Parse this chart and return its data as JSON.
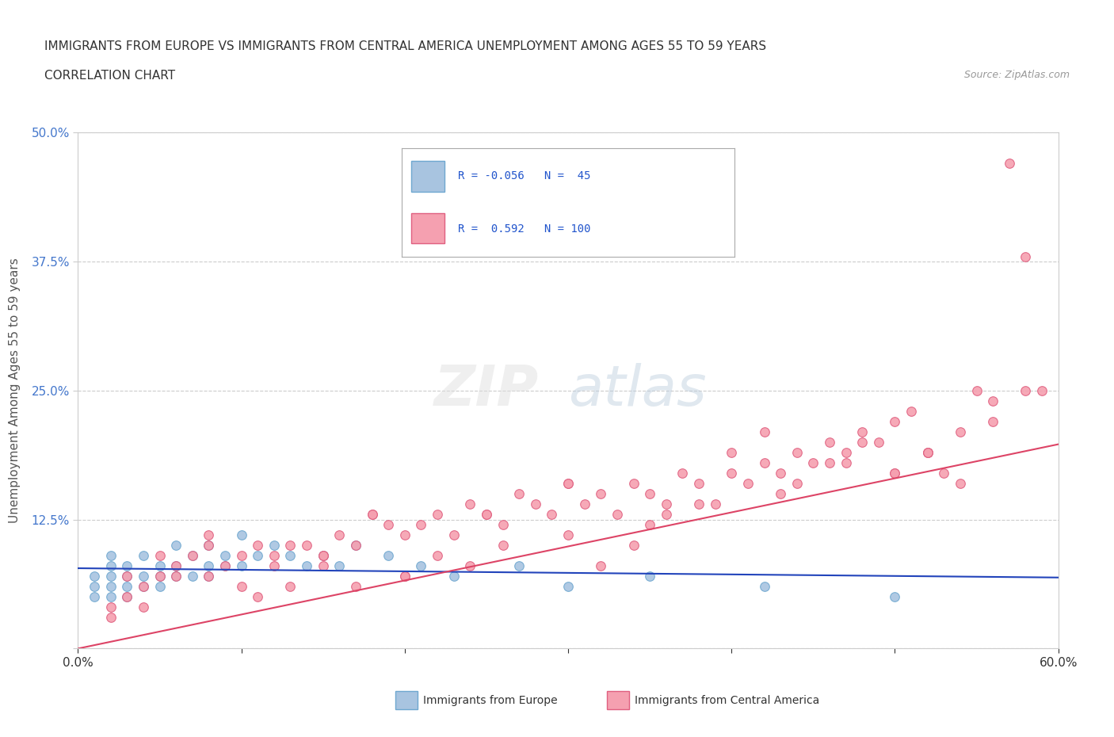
{
  "title_line1": "IMMIGRANTS FROM EUROPE VS IMMIGRANTS FROM CENTRAL AMERICA UNEMPLOYMENT AMONG AGES 55 TO 59 YEARS",
  "title_line2": "CORRELATION CHART",
  "source_text": "Source: ZipAtlas.com",
  "ylabel": "Unemployment Among Ages 55 to 59 years",
  "xlim": [
    0.0,
    0.6
  ],
  "ylim": [
    0.0,
    0.5
  ],
  "grid_color": "#cccccc",
  "background_color": "#ffffff",
  "europe_color": "#a8c4e0",
  "europe_edge_color": "#6fa8d0",
  "central_america_color": "#f5a0b0",
  "central_america_edge_color": "#e06080",
  "europe_line_color": "#2244bb",
  "central_america_line_color": "#dd4466",
  "R_europe": -0.056,
  "N_europe": 45,
  "R_central": 0.592,
  "N_central": 100,
  "legend_label_europe": "Immigrants from Europe",
  "legend_label_central": "Immigrants from Central America",
  "watermark_zip": "ZIP",
  "watermark_atlas": "atlas",
  "europe_x": [
    0.01,
    0.01,
    0.01,
    0.02,
    0.02,
    0.02,
    0.02,
    0.02,
    0.03,
    0.03,
    0.03,
    0.03,
    0.04,
    0.04,
    0.04,
    0.05,
    0.05,
    0.05,
    0.06,
    0.06,
    0.06,
    0.07,
    0.07,
    0.08,
    0.08,
    0.08,
    0.09,
    0.09,
    0.1,
    0.1,
    0.11,
    0.12,
    0.13,
    0.14,
    0.15,
    0.16,
    0.17,
    0.19,
    0.21,
    0.23,
    0.27,
    0.3,
    0.35,
    0.42,
    0.5
  ],
  "europe_y": [
    0.05,
    0.06,
    0.07,
    0.05,
    0.06,
    0.07,
    0.08,
    0.09,
    0.05,
    0.06,
    0.07,
    0.08,
    0.06,
    0.07,
    0.09,
    0.06,
    0.07,
    0.08,
    0.07,
    0.08,
    0.1,
    0.07,
    0.09,
    0.07,
    0.08,
    0.1,
    0.08,
    0.09,
    0.08,
    0.11,
    0.09,
    0.1,
    0.09,
    0.08,
    0.09,
    0.08,
    0.1,
    0.09,
    0.08,
    0.07,
    0.08,
    0.06,
    0.07,
    0.06,
    0.05
  ],
  "central_x": [
    0.02,
    0.03,
    0.03,
    0.04,
    0.05,
    0.05,
    0.06,
    0.07,
    0.08,
    0.08,
    0.09,
    0.1,
    0.11,
    0.12,
    0.13,
    0.14,
    0.15,
    0.16,
    0.17,
    0.18,
    0.19,
    0.2,
    0.21,
    0.22,
    0.23,
    0.24,
    0.25,
    0.26,
    0.27,
    0.28,
    0.29,
    0.3,
    0.31,
    0.32,
    0.33,
    0.34,
    0.35,
    0.36,
    0.37,
    0.38,
    0.39,
    0.4,
    0.41,
    0.42,
    0.43,
    0.44,
    0.45,
    0.46,
    0.47,
    0.48,
    0.49,
    0.5,
    0.51,
    0.52,
    0.53,
    0.54,
    0.55,
    0.56,
    0.57,
    0.58,
    0.4,
    0.42,
    0.44,
    0.46,
    0.48,
    0.5,
    0.52,
    0.3,
    0.32,
    0.34,
    0.36,
    0.2,
    0.22,
    0.24,
    0.26,
    0.15,
    0.17,
    0.13,
    0.11,
    0.58,
    0.56,
    0.54,
    0.52,
    0.5,
    0.47,
    0.43,
    0.38,
    0.35,
    0.3,
    0.25,
    0.2,
    0.18,
    0.15,
    0.12,
    0.1,
    0.08,
    0.06,
    0.04,
    0.59,
    0.02
  ],
  "central_y": [
    0.04,
    0.05,
    0.07,
    0.06,
    0.07,
    0.09,
    0.08,
    0.09,
    0.07,
    0.11,
    0.08,
    0.09,
    0.1,
    0.09,
    0.1,
    0.1,
    0.09,
    0.11,
    0.1,
    0.13,
    0.12,
    0.11,
    0.12,
    0.13,
    0.11,
    0.14,
    0.13,
    0.12,
    0.15,
    0.14,
    0.13,
    0.16,
    0.14,
    0.15,
    0.13,
    0.16,
    0.15,
    0.14,
    0.17,
    0.16,
    0.14,
    0.17,
    0.16,
    0.18,
    0.17,
    0.19,
    0.18,
    0.2,
    0.19,
    0.21,
    0.2,
    0.22,
    0.23,
    0.19,
    0.17,
    0.21,
    0.25,
    0.22,
    0.47,
    0.38,
    0.19,
    0.21,
    0.16,
    0.18,
    0.2,
    0.17,
    0.19,
    0.11,
    0.08,
    0.1,
    0.13,
    0.07,
    0.09,
    0.08,
    0.1,
    0.08,
    0.06,
    0.06,
    0.05,
    0.25,
    0.24,
    0.16,
    0.19,
    0.17,
    0.18,
    0.15,
    0.14,
    0.12,
    0.16,
    0.13,
    0.07,
    0.13,
    0.09,
    0.08,
    0.06,
    0.1,
    0.07,
    0.04,
    0.25,
    0.03
  ]
}
